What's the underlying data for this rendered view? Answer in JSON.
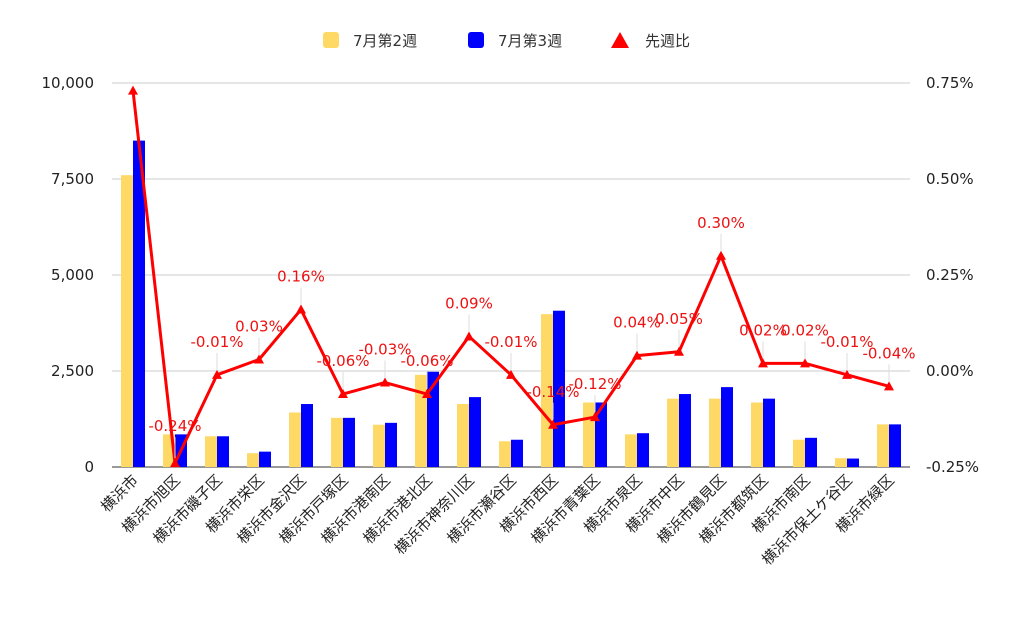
{
  "colors": {
    "week2": "#FFD966",
    "week3": "#0000FF",
    "ratio": "#FF0000",
    "grid": "#CCCCCC"
  },
  "chart_data": {
    "type": "bar",
    "title": "",
    "legend_position": "top-center",
    "grid": true,
    "categories": [
      "横浜市",
      "横浜市旭区",
      "横浜市磯子区",
      "横浜市栄区",
      "横浜市金沢区",
      "横浜市戸塚区",
      "横浜市港南区",
      "横浜市港北区",
      "横浜市神奈川区",
      "横浜市瀬谷区",
      "横浜市西区",
      "横浜市青葉区",
      "横浜市泉区",
      "横浜市中区",
      "横浜市鶴見区",
      "横浜市都筑区",
      "横浜市南区",
      "横浜市保土ケ谷区",
      "横浜市緑区"
    ],
    "series": [
      {
        "name": "7月第2週",
        "type": "bar",
        "axis": "left",
        "values": [
          7600,
          850,
          800,
          360,
          1420,
          1280,
          1100,
          2400,
          1640,
          670,
          3980,
          1680,
          850,
          1780,
          1780,
          1680,
          710,
          230,
          1110
        ]
      },
      {
        "name": "7月第3週",
        "type": "bar",
        "axis": "left",
        "values": [
          8500,
          850,
          800,
          400,
          1640,
          1280,
          1150,
          2480,
          1820,
          710,
          4070,
          1680,
          880,
          1900,
          2080,
          1780,
          760,
          220,
          1110
        ]
      },
      {
        "name": "先週比",
        "type": "line",
        "axis": "right",
        "values": [
          0.73,
          -0.24,
          -0.01,
          0.03,
          0.16,
          -0.06,
          -0.03,
          -0.06,
          0.09,
          -0.01,
          -0.14,
          -0.12,
          0.04,
          0.05,
          0.3,
          0.02,
          0.02,
          -0.01,
          -0.04
        ],
        "labels": [
          "",
          "-0.24%",
          "-0.01%",
          "0.03%",
          "0.16%",
          "-0.06%",
          "-0.03%",
          "-0.06%",
          "0.09%",
          "-0.01%",
          "-0.14%",
          "-0.12%",
          "0.04%",
          "0.05%",
          "0.30%",
          "0.02%",
          "0.02%",
          "-0.01%",
          "-0.04%"
        ]
      }
    ],
    "y_left": {
      "min": 0,
      "max": 10000,
      "ticks": [
        0,
        2500,
        5000,
        7500,
        10000
      ],
      "tick_labels": [
        "0",
        "2,500",
        "5,000",
        "7,500",
        "10,000"
      ]
    },
    "y_right": {
      "min": -0.25,
      "max": 0.75,
      "ticks": [
        -0.25,
        0,
        0.25,
        0.5,
        0.75
      ],
      "tick_labels": [
        "-0.25%",
        "0.00%",
        "0.25%",
        "0.50%",
        "0.75%"
      ]
    }
  }
}
